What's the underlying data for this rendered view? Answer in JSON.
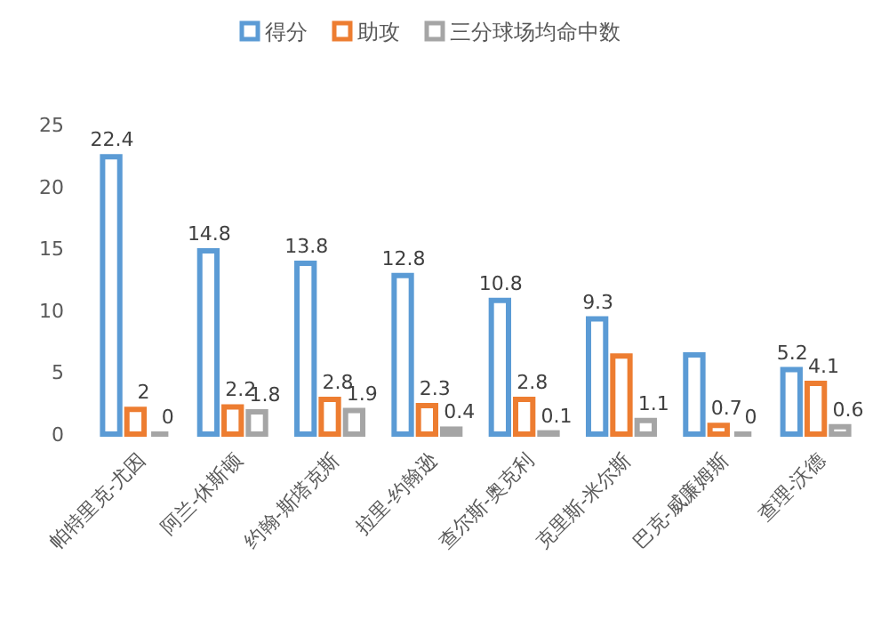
{
  "chart_data": {
    "type": "bar",
    "categories": [
      "帕特里克-尤因",
      "阿兰-休斯顿",
      "约翰-斯塔克斯",
      "拉里-约翰逊",
      "查尔斯-奥克利",
      "克里斯-米尔斯",
      "巴克-威廉姆斯",
      "查理-沃德"
    ],
    "series": [
      {
        "name": "得分",
        "color": "#5b9bd5",
        "values": [
          22.4,
          14.8,
          13.8,
          12.8,
          10.8,
          9.3,
          6.4,
          5.2
        ],
        "value_labels": [
          "22.4",
          "14.8",
          "13.8",
          "12.8",
          "10.8",
          "9.3",
          null,
          "5.2"
        ]
      },
      {
        "name": "助攻",
        "color": "#ed7d31",
        "values": [
          2,
          2.2,
          2.8,
          2.3,
          2.8,
          6.3,
          0.7,
          4.1
        ],
        "value_labels": [
          "2",
          "2.2",
          "2.8",
          "2.3",
          "2.8",
          null,
          "0.7",
          "4.1"
        ]
      },
      {
        "name": "三分球场均命中数",
        "color": "#a5a5a5",
        "values": [
          0,
          1.8,
          1.9,
          0.4,
          0.1,
          1.1,
          0,
          0.6
        ],
        "value_labels": [
          "0",
          "1.8",
          "1.9",
          "0.4",
          "0.1",
          "1.1",
          "0",
          "0.6"
        ]
      }
    ],
    "ylim": [
      0,
      25
    ],
    "yticks": [
      0,
      5,
      10,
      15,
      20,
      25
    ],
    "grid": false,
    "legend": "top"
  }
}
